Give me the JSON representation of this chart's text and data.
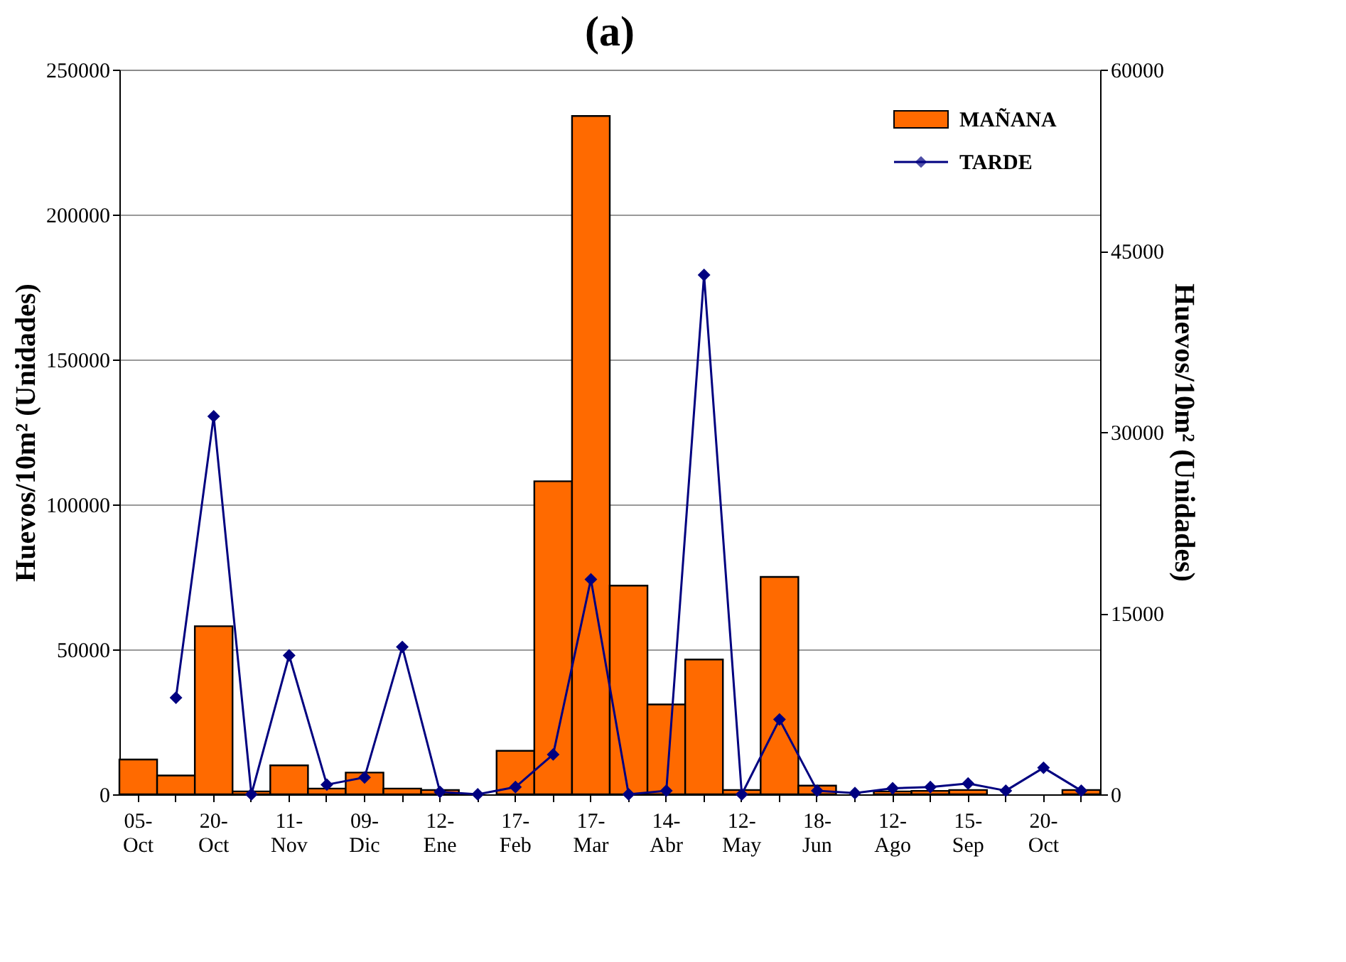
{
  "chart_data": {
    "type": "bar",
    "title": "(a)",
    "ylabel": "Huevos/10m² (Unidades)",
    "y2label": "Huevos/10m² (Unidades)",
    "categories": [
      "05-Oct",
      null,
      "20-Oct",
      null,
      "11-Nov",
      null,
      "09-Dic",
      null,
      "12-Ene",
      null,
      "17-Feb",
      null,
      "17-Mar",
      null,
      "14-Abr",
      null,
      "12-May",
      null,
      "18-Jun",
      null,
      "12-Ago",
      null,
      "15-Sep",
      null,
      "20-Oct",
      null
    ],
    "series": [
      {
        "name": "MAÑANA",
        "color": "#ff6a00",
        "values": [
          12000,
          6500,
          58000,
          1000,
          10000,
          2000,
          7500,
          2000,
          1500,
          0,
          15000,
          108000,
          234000,
          72000,
          31000,
          46500,
          1500,
          75000,
          3000,
          0,
          1000,
          1200,
          1500,
          0,
          0,
          1500
        ]
      },
      {
        "name": "TARDE",
        "type": "line",
        "axis": "y2",
        "color": "#000080",
        "marker": "diamond",
        "values": [
          null,
          8000,
          31300,
          0,
          11500,
          800,
          1400,
          12200,
          200,
          0,
          600,
          3300,
          17800,
          0,
          300,
          43000,
          0,
          6200,
          300,
          100,
          500,
          600,
          900,
          300,
          2200,
          300
        ]
      }
    ],
    "ylim": [
      0,
      250000
    ],
    "yticks": [
      0,
      50000,
      100000,
      150000,
      200000,
      250000
    ],
    "y2lim": [
      0,
      60000
    ],
    "y2ticks": [
      0,
      15000,
      30000,
      45000,
      60000
    ],
    "grid": "y",
    "legend": "top right"
  }
}
